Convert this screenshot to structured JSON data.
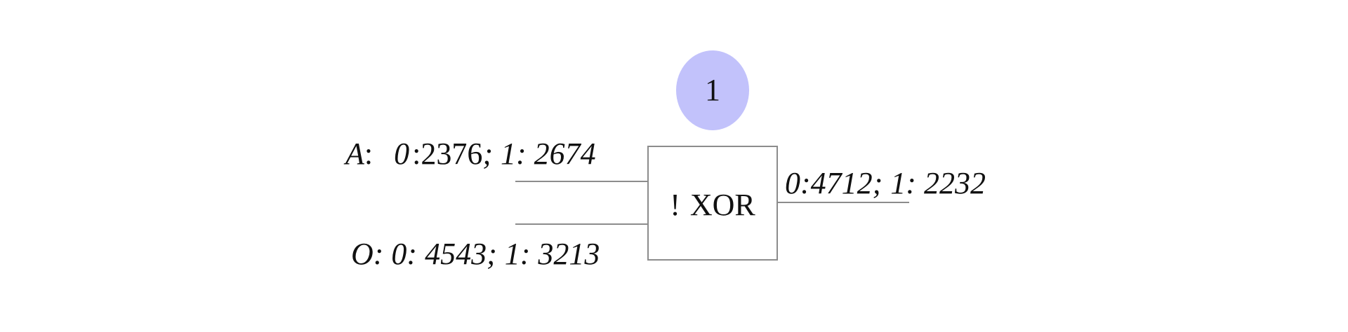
{
  "node": {
    "badge_number": "1"
  },
  "gate": {
    "negation": "!",
    "operator": "XOR"
  },
  "inputs": {
    "a": {
      "name": "A",
      "colon": ":",
      "zero_label": "0",
      "zero_sep": ":",
      "zero_count": "2376",
      "one_part": "; 1: 2674"
    },
    "o": {
      "text": "O: 0: 4543; 1: 3213"
    }
  },
  "output": {
    "text": "0:4712; 1: 2232"
  },
  "colors": {
    "badge_fill": "#c2c2fb",
    "line": "#8c8c8c",
    "text": "#111111"
  }
}
